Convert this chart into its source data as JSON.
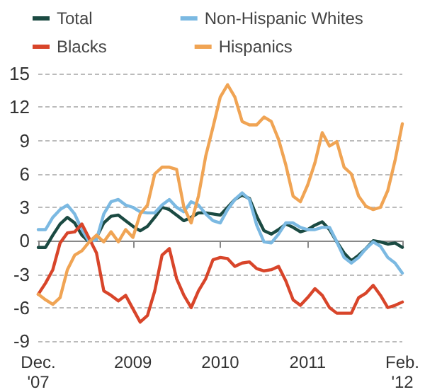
{
  "chart_data": {
    "type": "line",
    "categories": [
      "Dec.\n'07",
      null,
      null,
      null,
      null,
      null,
      null,
      null,
      null,
      null,
      null,
      null,
      null,
      "2009",
      null,
      null,
      null,
      null,
      null,
      null,
      null,
      null,
      null,
      null,
      null,
      "2010",
      null,
      null,
      null,
      null,
      null,
      null,
      null,
      null,
      null,
      null,
      null,
      "2011",
      null,
      null,
      null,
      null,
      null,
      null,
      null,
      null,
      null,
      null,
      null,
      null,
      "Feb.\n'12"
    ],
    "series": [
      {
        "name": "Total",
        "color": "#1b4a42",
        "values": [
          -0.6,
          -0.6,
          0.5,
          1.5,
          2.1,
          1.6,
          0.5,
          -0.1,
          0.3,
          1.6,
          2.2,
          2.3,
          1.8,
          1.3,
          0.9,
          1.3,
          2.1,
          3.0,
          2.8,
          2.3,
          1.8,
          2.1,
          2.5,
          2.5,
          2.4,
          2.3,
          3.0,
          3.7,
          4.1,
          3.8,
          2.2,
          0.9,
          0.6,
          1.0,
          1.5,
          1.2,
          0.8,
          1.0,
          1.4,
          1.7,
          1.0,
          -0.1,
          -1.1,
          -1.8,
          -1.3,
          -0.7,
          0.0,
          -0.1,
          -0.3,
          -0.2,
          -0.6
        ]
      },
      {
        "name": "Non-Hispanic Whites",
        "color": "#7bb9e2",
        "values": [
          1.0,
          1.0,
          2.1,
          2.8,
          3.2,
          2.4,
          1.0,
          -0.1,
          0.1,
          2.4,
          3.5,
          3.7,
          3.2,
          3.0,
          2.6,
          2.5,
          2.5,
          3.2,
          3.7,
          3.0,
          2.6,
          3.5,
          3.2,
          2.4,
          1.8,
          1.6,
          2.8,
          3.7,
          4.3,
          3.7,
          1.4,
          -0.1,
          -0.2,
          0.6,
          1.6,
          1.6,
          1.2,
          1.0,
          1.0,
          1.2,
          1.2,
          -0.1,
          -1.5,
          -2.0,
          -1.5,
          -0.7,
          -0.1,
          -0.5,
          -1.5,
          -2.0,
          -2.9
        ]
      },
      {
        "name": "Blacks",
        "color": "#d8452a",
        "values": [
          -4.8,
          -3.8,
          -2.6,
          -0.2,
          0.7,
          0.8,
          1.5,
          0.2,
          -1.1,
          -4.5,
          -4.9,
          -5.4,
          -4.9,
          -6.1,
          -7.3,
          -6.7,
          -4.5,
          -1.3,
          -0.7,
          -3.4,
          -4.9,
          -6.0,
          -4.5,
          -3.4,
          -1.7,
          -1.5,
          -1.6,
          -2.3,
          -2.0,
          -1.9,
          -2.5,
          -2.7,
          -2.6,
          -2.3,
          -3.6,
          -5.3,
          -5.8,
          -5.1,
          -4.3,
          -4.9,
          -6.0,
          -6.5,
          -6.5,
          -6.5,
          -5.1,
          -4.7,
          -4.0,
          -4.9,
          -6.0,
          -5.8,
          -5.5
        ]
      },
      {
        "name": "Hispanics",
        "color": "#f0a454",
        "values": [
          -4.8,
          -5.3,
          -5.7,
          -5.1,
          -2.6,
          -1.3,
          -0.9,
          -0.1,
          0.5,
          -0.1,
          0.8,
          -0.1,
          1.0,
          0.3,
          2.4,
          3.2,
          6.0,
          6.6,
          6.6,
          6.4,
          3.0,
          1.6,
          4.0,
          7.6,
          10.2,
          12.9,
          14.0,
          12.9,
          10.7,
          10.4,
          10.4,
          11.1,
          10.7,
          9.1,
          6.8,
          4.0,
          3.5,
          5.0,
          7.0,
          9.7,
          8.5,
          8.9,
          6.6,
          6.0,
          4.0,
          3.1,
          2.8,
          3.0,
          4.5,
          7.2,
          10.5
        ]
      }
    ],
    "ylim": [
      -9,
      15
    ],
    "yticks": [
      -9,
      -6,
      -3,
      0,
      3,
      6,
      9,
      12,
      15
    ],
    "grid": "y",
    "legend": "top",
    "marker": "none",
    "line_style": "solid"
  }
}
